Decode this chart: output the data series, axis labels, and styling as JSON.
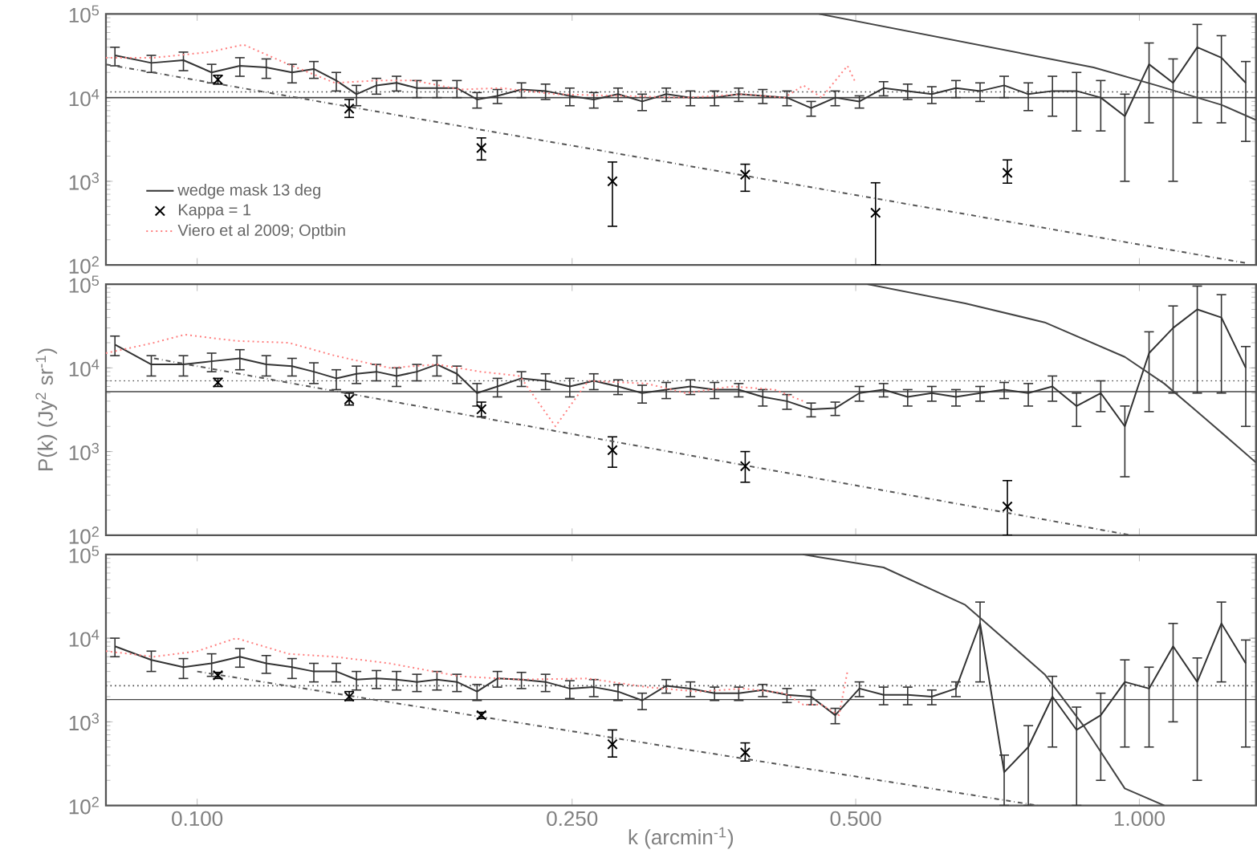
{
  "chart_data": [
    {
      "type": "line",
      "log": "xy",
      "xlim": [
        0.08,
        1.33
      ],
      "ylim": [
        100,
        100000
      ],
      "tick_labels": "y",
      "legend": "bottom left",
      "xticks": [
        {
          "value": 0.1,
          "label": null
        },
        {
          "value": 0.25,
          "label": null
        },
        {
          "value": 0.5,
          "label": null
        },
        {
          "value": 1,
          "label": null
        }
      ],
      "yticks": [
        {
          "value": 100,
          "label": "10$^{2}$"
        },
        {
          "value": 1000,
          "label": "10$^{3}$"
        },
        {
          "value": 10000,
          "label": "10$^{4}$"
        },
        {
          "value": 100000,
          "label": "10$^{5}$"
        }
      ],
      "ref_lines": [
        {
          "axis": "y",
          "value": 10000,
          "color": "#444444",
          "line_style": "solid"
        },
        {
          "axis": "y",
          "value": 11700,
          "color": "#444444",
          "line_style": "dotted"
        }
      ],
      "series": [
        {
          "name": "wedge mask 13 deg",
          "type": "line",
          "color": "#333333",
          "line_style": "solid",
          "marker": "none",
          "x": [
            0.0818,
            0.0894,
            0.0967,
            0.1036,
            0.111,
            0.1184,
            0.1261,
            0.133,
            0.1405,
            0.1476,
            0.155,
            0.1628,
            0.1711,
            0.1797,
            0.1887,
            0.1982,
            0.2083,
            0.2209,
            0.2343,
            0.2486,
            0.2636,
            0.2797,
            0.2967,
            0.3147,
            0.3339,
            0.3541,
            0.3757,
            0.3985,
            0.4227,
            0.4484,
            0.4756,
            0.5045,
            0.5352,
            0.5677,
            0.6022,
            0.6388,
            0.6776,
            0.7187,
            0.7624,
            0.8087,
            0.8578,
            0.91,
            0.9652,
            1.024,
            1.086,
            1.152,
            1.222,
            1.297
          ],
          "values": [
            32000,
            26000,
            28000,
            20000,
            24000,
            23000,
            20000,
            22000,
            16000,
            11000,
            14000,
            15000,
            13000,
            13000,
            13000,
            9500,
            10500,
            12500,
            12000,
            10500,
            9500,
            11000,
            9000,
            11000,
            10000,
            10000,
            11000,
            10500,
            10000,
            7500,
            10000,
            9000,
            13000,
            12000,
            11000,
            13000,
            12000,
            14000,
            11000,
            12000,
            12000,
            10000,
            6000,
            25000,
            15000,
            40000,
            30000,
            15000
          ],
          "errors": [
            8000,
            6000,
            7000,
            5000,
            6000,
            6000,
            5000,
            5000,
            4000,
            3000,
            3000,
            3000,
            3000,
            3000,
            3000,
            2000,
            2000,
            2500,
            2500,
            2500,
            2000,
            2000,
            2000,
            2000,
            2000,
            2000,
            2000,
            2000,
            2000,
            1500,
            2000,
            1500,
            2500,
            2500,
            2500,
            3000,
            3000,
            4000,
            4000,
            6000,
            8000,
            6000,
            5000,
            20000,
            14000,
            35000,
            25000,
            12000
          ]
        },
        {
          "name": "Kappa = 1",
          "type": "scatter",
          "color": "#000000",
          "marker": "cross",
          "x": [
            0.1052,
            0.145,
            0.2003,
            0.2759,
            0.3817,
            0.5248,
            0.7244
          ],
          "values": [
            16400,
            7400,
            2500,
            1000,
            1200,
            420,
            1260
          ],
          "errors": [
            [
              14500,
              18500
            ],
            [
              5800,
              9500
            ],
            [
              1800,
              3300
            ],
            [
              290,
              1700
            ],
            [
              760,
              1600
            ],
            [
              100,
              960
            ],
            [
              950,
              1800
            ]
          ]
        },
        {
          "name": "Viero et al 2009; Optbin",
          "type": "line",
          "color": "#ff8080",
          "line_style": "dotted",
          "marker": "none",
          "x": [
            0.08,
            0.09,
            0.103,
            0.112,
            0.125,
            0.14,
            0.155,
            0.17,
            0.19,
            0.21,
            0.24,
            0.28,
            0.33,
            0.38,
            0.42,
            0.44,
            0.46,
            0.49,
            0.5
          ],
          "values": [
            30000,
            30000,
            35000,
            43000,
            25000,
            15000,
            16000,
            16000,
            12500,
            13000,
            11000,
            10500,
            10000,
            11000,
            10000,
            14000,
            10000,
            24000,
            15000
          ]
        },
        {
          "type": "line",
          "color": "#555555",
          "line_style": "dashdot",
          "marker": "none",
          "x": [
            0.08,
            1.3
          ],
          "values": [
            25000,
            105
          ]
        },
        {
          "type": "line",
          "color": "#444444",
          "line_style": "solid",
          "marker": "none",
          "x": [
            0.4571,
            0.894,
            1.043,
            1.222,
            1.33
          ],
          "values": [
            100000,
            23000,
            14000,
            8200,
            5400
          ]
        }
      ]
    },
    {
      "type": "line",
      "log": "xy",
      "xlim": [
        0.08,
        1.33
      ],
      "ylim": [
        100,
        100000
      ],
      "tick_labels": "y",
      "ylabel": "P(k)  (Jy$^{2}$ sr$^{-1}$)",
      "xticks": [
        {
          "value": 0.1,
          "label": null
        },
        {
          "value": 0.25,
          "label": null
        },
        {
          "value": 0.5,
          "label": null
        },
        {
          "value": 1,
          "label": null
        }
      ],
      "yticks": [
        {
          "value": 100,
          "label": "10$^{2}$"
        },
        {
          "value": 1000,
          "label": "10$^{3}$"
        },
        {
          "value": 10000,
          "label": "10$^{4}$"
        },
        {
          "value": 100000,
          "label": "10$^{5}$"
        }
      ],
      "ref_lines": [
        {
          "axis": "y",
          "value": 5200,
          "color": "#444444",
          "line_style": "solid"
        },
        {
          "axis": "y",
          "value": 7000,
          "color": "#444444",
          "line_style": "dotted"
        }
      ],
      "series": [
        {
          "type": "line",
          "color": "#333333",
          "line_style": "solid",
          "marker": "none",
          "x": [
            0.0818,
            0.0894,
            0.0967,
            0.1036,
            0.111,
            0.1184,
            0.1261,
            0.133,
            0.1405,
            0.1476,
            0.155,
            0.1628,
            0.1711,
            0.1797,
            0.1887,
            0.1982,
            0.2083,
            0.2209,
            0.2343,
            0.2486,
            0.2636,
            0.2797,
            0.2967,
            0.3147,
            0.3339,
            0.3541,
            0.3757,
            0.3985,
            0.4227,
            0.4484,
            0.4756,
            0.5045,
            0.5352,
            0.5677,
            0.6022,
            0.6388,
            0.6776,
            0.7187,
            0.7624,
            0.8087,
            0.8578,
            0.91,
            0.9652,
            1.024,
            1.086,
            1.152,
            1.222,
            1.297
          ],
          "values": [
            19000,
            11000,
            11000,
            12000,
            13000,
            11000,
            10500,
            9000,
            7500,
            8500,
            9000,
            8000,
            9000,
            11000,
            8500,
            5000,
            6000,
            7500,
            7000,
            6000,
            7000,
            6000,
            5000,
            5500,
            6000,
            5500,
            5500,
            4500,
            4000,
            3200,
            3300,
            5000,
            5500,
            4500,
            5000,
            4500,
            5000,
            5500,
            5000,
            6000,
            3500,
            5000,
            2000,
            15000,
            30000,
            50000,
            40000,
            10000
          ],
          "errors": [
            5000,
            3000,
            3000,
            3000,
            3500,
            3000,
            2500,
            2500,
            2000,
            2000,
            2000,
            2000,
            2000,
            3000,
            2000,
            1500,
            1500,
            1500,
            1500,
            1500,
            1500,
            1200,
            1200,
            1200,
            1200,
            1200,
            1000,
            1000,
            800,
            600,
            600,
            1000,
            1000,
            1000,
            1000,
            1000,
            1000,
            1200,
            1500,
            2000,
            1500,
            2000,
            1500,
            12000,
            25000,
            45000,
            35000,
            8000
          ]
        },
        {
          "type": "scatter",
          "color": "#000000",
          "marker": "cross",
          "x": [
            0.1052,
            0.145,
            0.2003,
            0.2759,
            0.3817,
            0.7244
          ],
          "values": [
            6700,
            4200,
            3200,
            1040,
            670,
            220
          ],
          "errors": [
            [
              6000,
              7500
            ],
            [
              3600,
              5000
            ],
            [
              2600,
              3900
            ],
            [
              650,
              1500
            ],
            [
              430,
              1000
            ],
            [
              100,
              450
            ]
          ]
        },
        {
          "type": "line",
          "color": "#ff8080",
          "line_style": "dotted",
          "marker": "none",
          "x": [
            0.08,
            0.09,
            0.097,
            0.11,
            0.125,
            0.14,
            0.16,
            0.18,
            0.2,
            0.22,
            0.24,
            0.26,
            0.3,
            0.33,
            0.37,
            0.41,
            0.44
          ],
          "values": [
            15000,
            20000,
            25000,
            21000,
            20000,
            14000,
            10000,
            11000,
            9000,
            8000,
            2000,
            7000,
            6500,
            5000,
            6000,
            5500,
            4000
          ]
        },
        {
          "type": "line",
          "color": "#555555",
          "line_style": "dashdot",
          "marker": "none",
          "x": [
            0.09,
            0.98
          ],
          "values": [
            13000,
            100
          ]
        },
        {
          "type": "line",
          "color": "#444444",
          "line_style": "solid",
          "marker": "none",
          "x": [
            0.5145,
            0.6535,
            0.7936,
            0.9652,
            1.0626,
            1.174,
            1.33
          ],
          "values": [
            100000,
            59000,
            35000,
            13500,
            6500,
            2500,
            740
          ]
        }
      ]
    },
    {
      "type": "line",
      "log": "xy",
      "xlim": [
        0.08,
        1.33
      ],
      "ylim": [
        100,
        100000
      ],
      "xlabel": "k (arcmin$^{-1}$)",
      "xticks": [
        {
          "value": 0.1,
          "label": "0.100"
        },
        {
          "value": 0.25,
          "label": "0.250"
        },
        {
          "value": 0.5,
          "label": "0.500"
        },
        {
          "value": 1,
          "label": "1.000"
        }
      ],
      "yticks": [
        {
          "value": 100,
          "label": "10$^{2}$"
        },
        {
          "value": 1000,
          "label": "10$^{3}$"
        },
        {
          "value": 10000,
          "label": "10$^{4}$"
        },
        {
          "value": 100000,
          "label": "10$^{5}$"
        }
      ],
      "ref_lines": [
        {
          "axis": "y",
          "value": 1840,
          "color": "#444444",
          "line_style": "solid"
        },
        {
          "axis": "y",
          "value": 2700,
          "color": "#444444",
          "line_style": "dotted"
        }
      ],
      "series": [
        {
          "type": "line",
          "color": "#333333",
          "line_style": "solid",
          "marker": "none",
          "x": [
            0.0818,
            0.0894,
            0.0967,
            0.1036,
            0.111,
            0.1184,
            0.1261,
            0.133,
            0.1405,
            0.1476,
            0.155,
            0.1628,
            0.1711,
            0.1797,
            0.1887,
            0.1982,
            0.2083,
            0.2209,
            0.2343,
            0.2486,
            0.2636,
            0.2797,
            0.2967,
            0.3147,
            0.3339,
            0.3541,
            0.3757,
            0.3985,
            0.4227,
            0.4484,
            0.4756,
            0.5045,
            0.5352,
            0.5677,
            0.6022,
            0.6388,
            0.6776,
            0.7187,
            0.7624,
            0.8087,
            0.8578,
            0.91,
            0.9652,
            1.024,
            1.086,
            1.152,
            1.222,
            1.297
          ],
          "values": [
            8000,
            5500,
            4500,
            5000,
            6000,
            5000,
            4500,
            4000,
            4000,
            3200,
            3300,
            3200,
            3000,
            3200,
            3000,
            2300,
            3300,
            3200,
            3000,
            2500,
            2600,
            2300,
            1800,
            2700,
            2500,
            2200,
            2200,
            2400,
            2100,
            2000,
            1200,
            2500,
            2100,
            2100,
            2000,
            2500,
            15000,
            250,
            500,
            2000,
            800,
            1200,
            3000,
            2500,
            8000,
            3000,
            15000,
            5000
          ],
          "errors": [
            2000,
            1500,
            1200,
            1500,
            1500,
            1200,
            1200,
            1000,
            1000,
            800,
            800,
            800,
            700,
            800,
            700,
            500,
            700,
            700,
            700,
            600,
            600,
            500,
            400,
            500,
            500,
            400,
            400,
            400,
            400,
            400,
            250,
            500,
            500,
            500,
            400,
            500,
            12000,
            150,
            400,
            1500,
            700,
            1000,
            2500,
            2000,
            7000,
            2800,
            12000,
            4500
          ]
        },
        {
          "type": "scatter",
          "color": "#000000",
          "marker": "cross",
          "x": [
            0.1052,
            0.145,
            0.2003,
            0.2759,
            0.3817
          ],
          "values": [
            3600,
            2000,
            1200,
            540,
            430
          ],
          "errors": [
            [
              3300,
              3900
            ],
            [
              1800,
              2300
            ],
            [
              1100,
              1300
            ],
            [
              380,
              800
            ],
            [
              340,
              560
            ]
          ]
        },
        {
          "type": "line",
          "color": "#ff8080",
          "line_style": "dotted",
          "marker": "none",
          "x": [
            0.08,
            0.09,
            0.1,
            0.11,
            0.125,
            0.14,
            0.16,
            0.19,
            0.22,
            0.26,
            0.3,
            0.34,
            0.38,
            0.42,
            0.44,
            0.46,
            0.48,
            0.49
          ],
          "values": [
            7000,
            6000,
            7000,
            10000,
            6500,
            6000,
            5000,
            3500,
            3200,
            3300,
            2600,
            2300,
            2500,
            2200,
            1600,
            1600,
            1200,
            4000
          ]
        },
        {
          "type": "line",
          "color": "#555555",
          "line_style": "dashdot",
          "marker": "none",
          "x": [
            0.1,
            0.78
          ],
          "values": [
            4000,
            100
          ]
        },
        {
          "type": "line",
          "color": "#444444",
          "line_style": "solid",
          "marker": "none",
          "x": [
            0.4393,
            0.5352,
            0.6535,
            0.7936,
            0.875,
            0.965,
            1.063
          ],
          "values": [
            100000,
            70000,
            25000,
            3700,
            860,
            160,
            100
          ]
        }
      ]
    }
  ]
}
